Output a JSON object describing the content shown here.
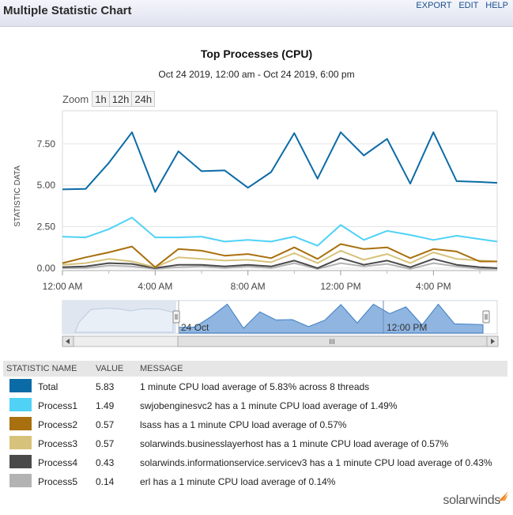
{
  "header": {
    "title": "Multiple Statistic Chart",
    "links": [
      "EXPORT",
      "EDIT",
      "HELP"
    ]
  },
  "zoom": {
    "label": "Zoom",
    "buttons": [
      "1h",
      "12h",
      "24h"
    ]
  },
  "navigator": {
    "date_label": "24 Oct",
    "time_label": "12:00 PM",
    "scroll_grip": "III"
  },
  "legend": {
    "headers": {
      "name": "STATISTIC NAME",
      "value": "VALUE",
      "message": "MESSAGE"
    },
    "rows": [
      {
        "name": "Total",
        "value": "5.83",
        "message": "1 minute CPU load average of 5.83% across 8 threads",
        "color": "#0b6ba6"
      },
      {
        "name": "Process1",
        "value": "1.49",
        "message": "swjobenginesvc2 has a 1 minute CPU load average of 1.49%",
        "color": "#4fd2f5"
      },
      {
        "name": "Process2",
        "value": "0.57",
        "message": "lsass has a 1 minute CPU load average of 0.57%",
        "color": "#a8700e"
      },
      {
        "name": "Process3",
        "value": "0.57",
        "message": "solarwinds.businesslayerhost has a 1 minute CPU load average of 0.57%",
        "color": "#d6c27a"
      },
      {
        "name": "Process4",
        "value": "0.43",
        "message": "solarwinds.informationservice.servicev3 has a 1 minute CPU load average of 0.43%",
        "color": "#4a4a4a"
      },
      {
        "name": "Process5",
        "value": "0.14",
        "message": "erl has a 1 minute CPU load average of 0.14%",
        "color": "#b3b3b3"
      }
    ]
  },
  "brand": "solarwinds",
  "chart_data": {
    "type": "line",
    "title": "Top Processes (CPU)",
    "subtitle": "Oct 24 2019, 12:00 am - Oct 24 2019, 6:00 pm",
    "ylabel": "STATISTIC DATA",
    "xlabel": "",
    "ylim": [
      -0.15,
      9.5
    ],
    "yticks": [
      0.0,
      2.5,
      5.0,
      7.5
    ],
    "ytick_labels": [
      "0.00",
      "2.50",
      "5.00",
      "7.50"
    ],
    "xlim": [
      0,
      18.75
    ],
    "xticks": [
      0,
      4,
      8,
      12,
      16
    ],
    "xtick_labels": [
      "12:00 AM",
      "4:00 AM",
      "8:00 AM",
      "12:00 PM",
      "4:00 PM"
    ],
    "x": [
      0,
      1,
      2,
      3,
      4,
      5,
      6,
      7,
      8,
      9,
      10,
      11,
      12,
      13,
      14,
      15,
      16,
      17,
      18,
      18.75
    ],
    "series": [
      {
        "name": "Total",
        "color": "#0b6ba6",
        "values": [
          4.75,
          4.78,
          6.35,
          8.2,
          4.6,
          7.05,
          5.85,
          5.9,
          4.85,
          5.8,
          8.15,
          5.4,
          8.2,
          6.8,
          7.8,
          5.1,
          8.2,
          5.25,
          5.2,
          5.15
        ]
      },
      {
        "name": "Process1",
        "color": "#4fd2f5",
        "values": [
          1.9,
          1.85,
          2.35,
          3.05,
          1.85,
          1.85,
          1.9,
          1.6,
          1.7,
          1.6,
          1.9,
          1.35,
          2.6,
          1.7,
          2.25,
          2.0,
          1.7,
          1.95,
          1.75,
          1.6
        ]
      },
      {
        "name": "Process2",
        "color": "#a8700e",
        "values": [
          0.3,
          0.65,
          0.95,
          1.3,
          0.05,
          1.15,
          1.05,
          0.75,
          0.85,
          0.6,
          1.25,
          0.55,
          1.45,
          1.15,
          1.25,
          0.6,
          1.15,
          1.0,
          0.4,
          0.4
        ]
      },
      {
        "name": "Process3",
        "color": "#d6c27a",
        "values": [
          0.2,
          0.3,
          0.55,
          0.4,
          0.05,
          0.65,
          0.55,
          0.45,
          0.5,
          0.35,
          0.9,
          0.3,
          1.05,
          0.5,
          0.85,
          0.3,
          0.95,
          0.55,
          0.45,
          0.4
        ]
      },
      {
        "name": "Process4",
        "color": "#4a4a4a",
        "values": [
          0.05,
          0.1,
          0.3,
          0.25,
          0.0,
          0.2,
          0.2,
          0.1,
          0.2,
          0.1,
          0.45,
          0.0,
          0.6,
          0.2,
          0.45,
          0.05,
          0.55,
          0.2,
          0.05,
          0.0
        ]
      },
      {
        "name": "Process5",
        "color": "#b3b3b3",
        "values": [
          0.0,
          0.0,
          0.15,
          0.1,
          -0.05,
          0.05,
          0.1,
          0.0,
          0.1,
          0.0,
          0.3,
          -0.05,
          0.3,
          0.1,
          0.25,
          -0.05,
          0.3,
          0.1,
          -0.05,
          -0.05
        ]
      }
    ]
  }
}
